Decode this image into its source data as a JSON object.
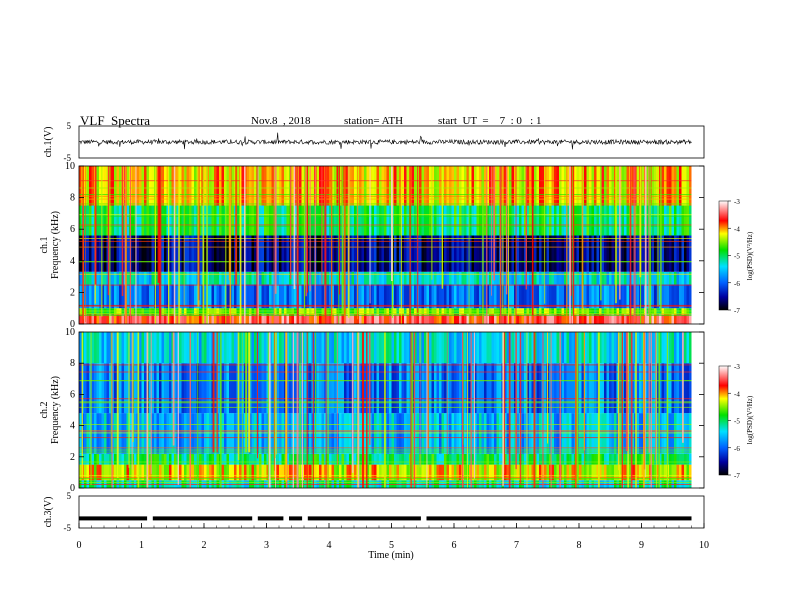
{
  "header": {
    "title": "VLF  Spectra",
    "date": "Nov.8  , 2018",
    "station": "station= ATH",
    "start_ut": "start  UT  =    7  : 0   : 1"
  },
  "chart_data": [
    {
      "type": "line",
      "panel": "ch1-waveform",
      "ylabel": "ch.1(V)",
      "ylim": [
        -5,
        5
      ],
      "y_ticks": [
        "5",
        "-5"
      ],
      "xlim": [
        0,
        10
      ],
      "trace_level": 0,
      "trace_end": 9.8
    },
    {
      "type": "heatmap",
      "panel": "ch1-spectrogram",
      "ylabel": "ch.1\nFrequency (kHz)",
      "ylim": [
        0,
        10
      ],
      "y_ticks": [
        "0",
        "2",
        "4",
        "6",
        "8",
        "10"
      ],
      "xlim": [
        0,
        10
      ],
      "data_end": 9.8,
      "colorbar": {
        "label": "log(PSD)(V²/Hz)",
        "ticks": [
          "-3",
          "-4",
          "-5",
          "-6",
          "-7"
        ],
        "range": [
          -7,
          -3
        ]
      },
      "bands_khz": [
        {
          "from": 0,
          "to": 0.6,
          "level": -3.6
        },
        {
          "from": 0.6,
          "to": 1.0,
          "level": -4.6
        },
        {
          "from": 1.0,
          "to": 2.5,
          "level": -5.9
        },
        {
          "from": 2.5,
          "to": 3.3,
          "level": -5.4
        },
        {
          "from": 3.3,
          "to": 5.6,
          "level": -6.6
        },
        {
          "from": 5.6,
          "to": 7.5,
          "level": -5.0
        },
        {
          "from": 7.5,
          "to": 10,
          "level": -4.1
        }
      ]
    },
    {
      "type": "heatmap",
      "panel": "ch2-spectrogram",
      "ylabel": "ch.2\nFrequency (kHz)",
      "ylim": [
        0,
        10
      ],
      "y_ticks": [
        "0",
        "2",
        "4",
        "6",
        "8",
        "10"
      ],
      "xlim": [
        0,
        10
      ],
      "data_end": 9.8,
      "colorbar": {
        "label": "log(PSD)(V²/Hz)",
        "ticks": [
          "-3",
          "-4",
          "-5",
          "-6",
          "-7"
        ],
        "range": [
          -7,
          -3
        ]
      },
      "bands_khz": [
        {
          "from": 0,
          "to": 0.5,
          "level": -5.2
        },
        {
          "from": 0.5,
          "to": 1.5,
          "level": -4.2
        },
        {
          "from": 1.5,
          "to": 2.2,
          "level": -5.0
        },
        {
          "from": 2.2,
          "to": 4.8,
          "level": -5.6
        },
        {
          "from": 4.8,
          "to": 8,
          "level": -5.9
        },
        {
          "from": 8,
          "to": 10,
          "level": -5.4
        }
      ]
    },
    {
      "type": "line",
      "panel": "ch3-waveform",
      "ylabel": "ch.3(V)",
      "ylim": [
        -5,
        5
      ],
      "y_ticks": [
        "5",
        "-5"
      ],
      "xlim": [
        0,
        10
      ],
      "xlabel": "Time  (min)",
      "x_ticks": [
        "0",
        "1",
        "2",
        "3",
        "4",
        "5",
        "6",
        "7",
        "8",
        "9",
        "10"
      ],
      "trace_level": -2,
      "trace_end": 9.8,
      "gaps_min": [
        1.12,
        2.8,
        3.3,
        3.6,
        5.5
      ]
    }
  ]
}
